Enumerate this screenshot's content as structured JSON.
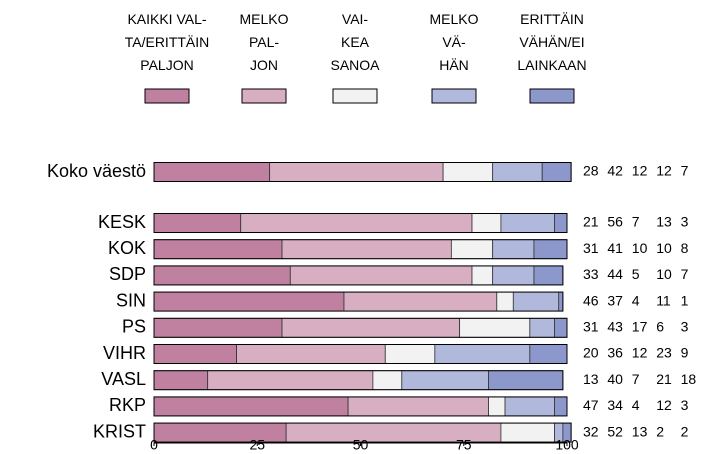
{
  "chart_data": {
    "type": "stacked_barh",
    "categories": [
      "Koko väestö",
      "KESK",
      "KOK",
      "SDP",
      "SIN",
      "PS",
      "VIHR",
      "VASL",
      "RKP",
      "KRIST"
    ],
    "series": [
      {
        "name": "KAIKKI VAL-\nTA/ERITTÄIN\nPALJON",
        "color": "#c0809f",
        "values": [
          28,
          21,
          31,
          33,
          46,
          31,
          20,
          13,
          47,
          32
        ]
      },
      {
        "name": "MELKO\nPAL-\nJON",
        "color": "#d8aec2",
        "values": [
          42,
          56,
          41,
          44,
          37,
          43,
          36,
          40,
          34,
          52
        ]
      },
      {
        "name": "VAI-\nKEA\nSANOA",
        "color": "#f2f2f2",
        "values": [
          12,
          7,
          10,
          5,
          4,
          17,
          12,
          7,
          4,
          13
        ]
      },
      {
        "name": "MELKO\nVÄ-\nHÄN",
        "color": "#b0b8dc",
        "values": [
          12,
          13,
          10,
          10,
          11,
          6,
          23,
          21,
          12,
          2
        ]
      },
      {
        "name": "ERITTÄIN\nVÄHÄN/EI\nLAINKAAN",
        "color": "#8c98cc",
        "values": [
          7,
          3,
          8,
          7,
          1,
          3,
          9,
          18,
          3,
          2
        ]
      }
    ],
    "xlim": [
      0,
      100
    ],
    "xticks": [
      0,
      25,
      50,
      75,
      100
    ]
  }
}
